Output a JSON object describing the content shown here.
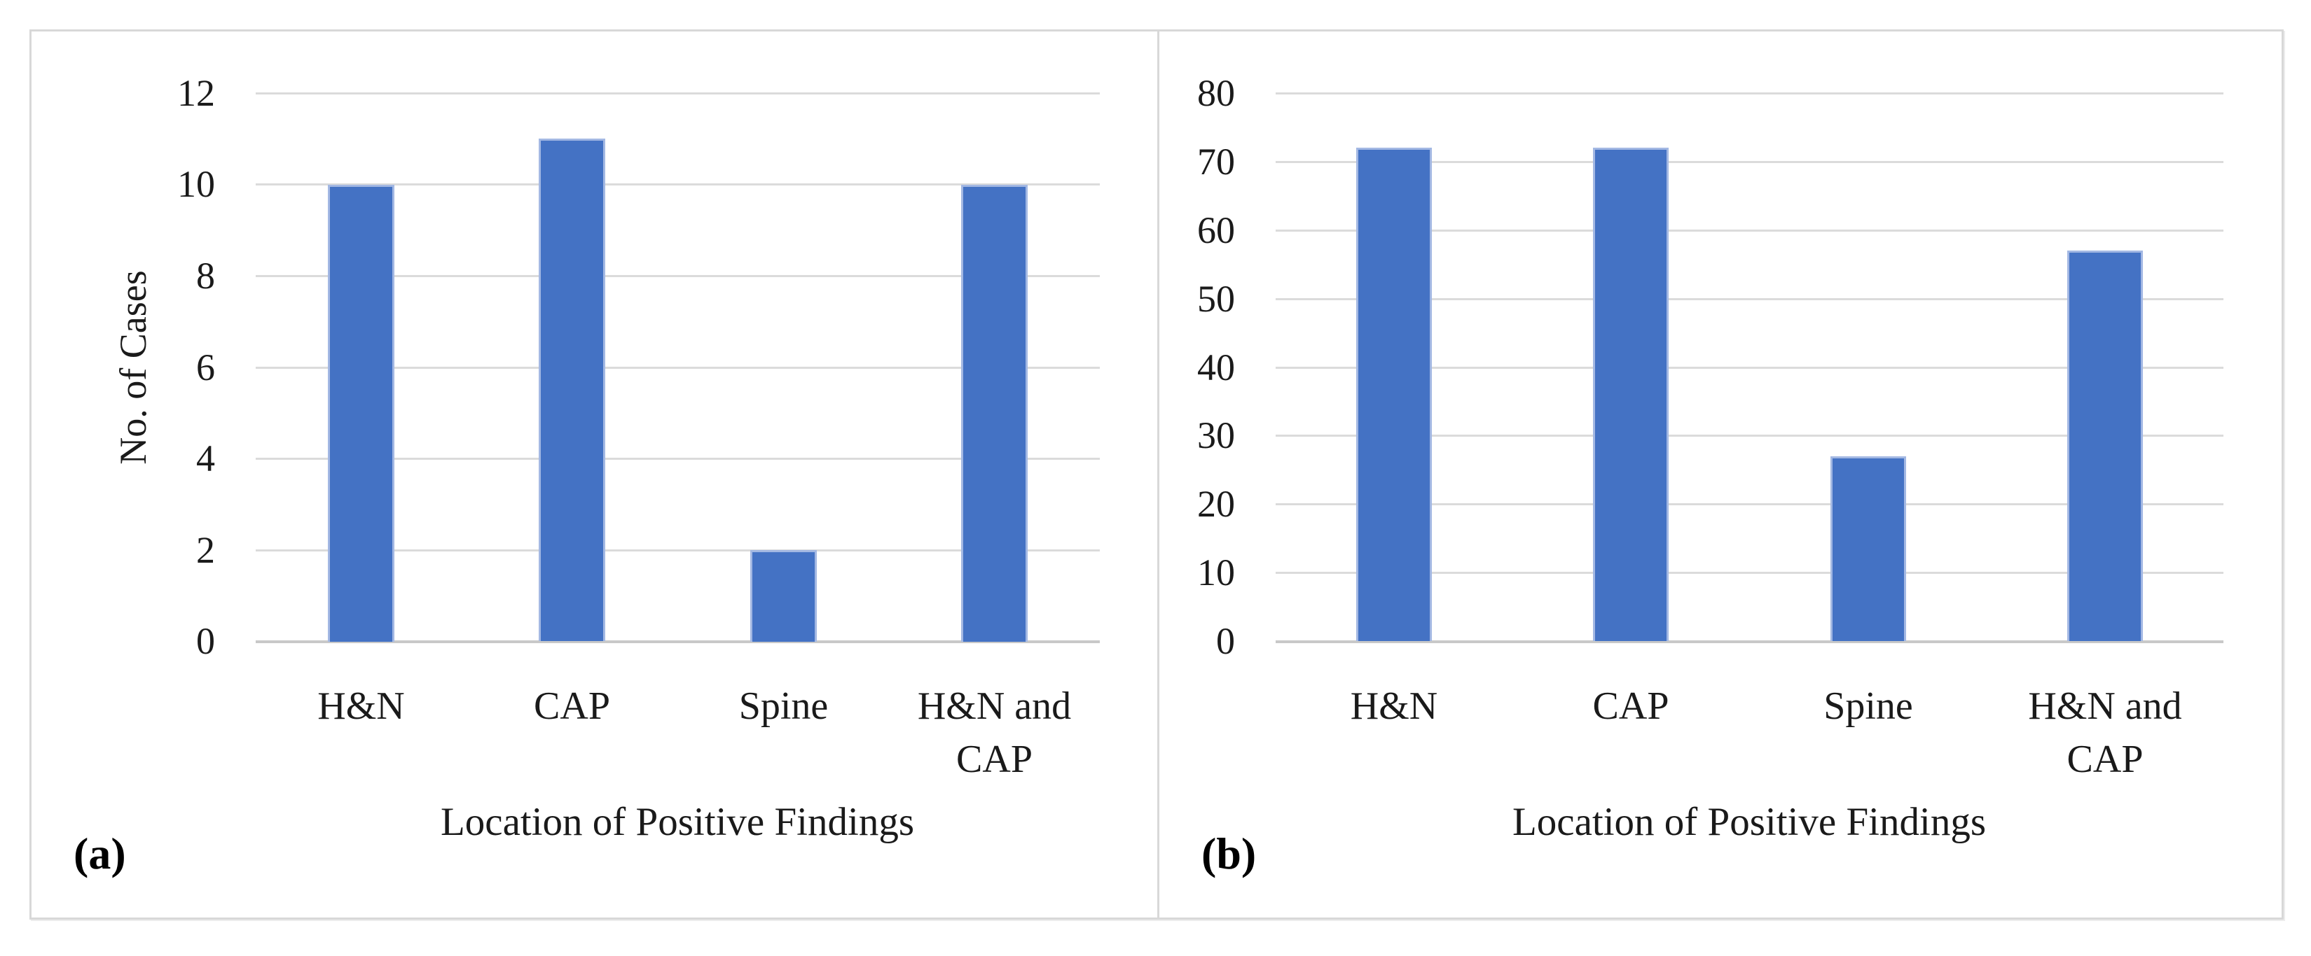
{
  "figure_type": "two-panel bar chart figure",
  "colors": {
    "bar_fill": "#4472C4",
    "bar_edge": "#A3B8E3",
    "gridline": "#DBDBDB",
    "axis_line": "#C8C8C8",
    "panel_border": "#D8D8D8",
    "text": "#1A1A1A"
  },
  "chart_data": [
    {
      "type": "bar",
      "panel_label": "(a)",
      "title": "",
      "xlabel": "Location of Positive Findings",
      "ylabel": "No. of Cases",
      "categories": [
        "H&N",
        "CAP",
        "Spine",
        "H&N and CAP"
      ],
      "categories_wrapped": [
        [
          "H&N"
        ],
        [
          "CAP"
        ],
        [
          "Spine"
        ],
        [
          "H&N and",
          "CAP"
        ]
      ],
      "values": [
        10,
        11,
        2,
        10
      ],
      "ylim": [
        0,
        12
      ],
      "ytick_step": 2,
      "ytick_labels": [
        "0",
        "2",
        "4",
        "6",
        "8",
        "10",
        "12"
      ],
      "grid": "horizontal",
      "legend": "none"
    },
    {
      "type": "bar",
      "panel_label": "(b)",
      "title": "",
      "xlabel": "Location of Positive Findings",
      "ylabel": "",
      "categories": [
        "H&N",
        "CAP",
        "Spine",
        "H&N and CAP"
      ],
      "categories_wrapped": [
        [
          "H&N"
        ],
        [
          "CAP"
        ],
        [
          "Spine"
        ],
        [
          "H&N and",
          "CAP"
        ]
      ],
      "values": [
        72,
        72,
        27,
        57
      ],
      "ylim": [
        0,
        80
      ],
      "ytick_step": 10,
      "ytick_labels": [
        "0",
        "10",
        "20",
        "30",
        "40",
        "50",
        "60",
        "70",
        "80"
      ],
      "grid": "horizontal",
      "legend": "none"
    }
  ]
}
